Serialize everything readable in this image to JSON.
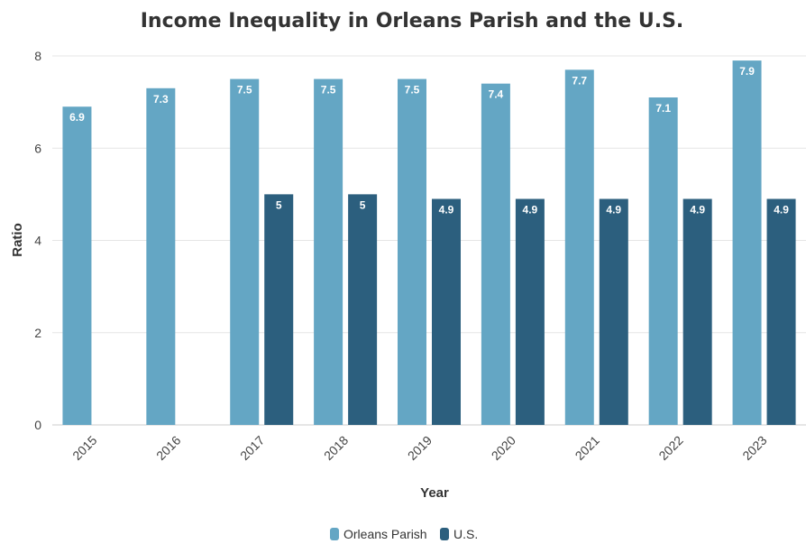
{
  "chart_data": {
    "type": "bar",
    "title": "Income Inequality in Orleans Parish and the U.S.",
    "xlabel": "Year",
    "ylabel": "Ratio",
    "ylim": [
      0,
      8
    ],
    "yticks": [
      "0",
      "2",
      "4",
      "6",
      "8"
    ],
    "categories": [
      "2015",
      "2016",
      "2017",
      "2018",
      "2019",
      "2020",
      "2021",
      "2022",
      "2023"
    ],
    "series": [
      {
        "name": "Orleans Parish",
        "color": "#64a6c4",
        "values": [
          6.9,
          7.3,
          7.5,
          7.5,
          7.5,
          7.4,
          7.7,
          7.1,
          7.9
        ],
        "labels": [
          "6.9",
          "7.3",
          "7.5",
          "7.5",
          "7.5",
          "7.4",
          "7.7",
          "7.1",
          "7.9"
        ]
      },
      {
        "name": "U.S.",
        "color": "#2c5f7e",
        "values": [
          null,
          null,
          5,
          5,
          4.9,
          4.9,
          4.9,
          4.9,
          4.9
        ],
        "labels": [
          "",
          "",
          "5",
          "5",
          "4.9",
          "4.9",
          "4.9",
          "4.9",
          "4.9"
        ]
      }
    ],
    "grid": true,
    "legend_position": "bottom"
  }
}
